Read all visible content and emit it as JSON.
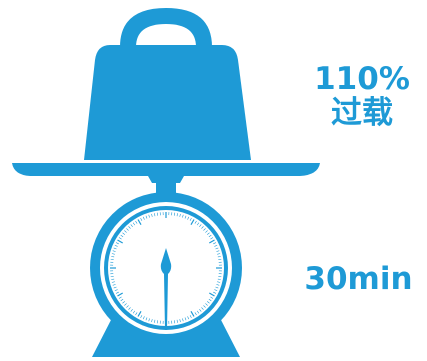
{
  "overload": {
    "percent_label": "110%",
    "status_label": "过载"
  },
  "duration": {
    "label": "30min"
  },
  "icon": {
    "name": "weight-scale-icon",
    "color": "#1e9ad6"
  }
}
